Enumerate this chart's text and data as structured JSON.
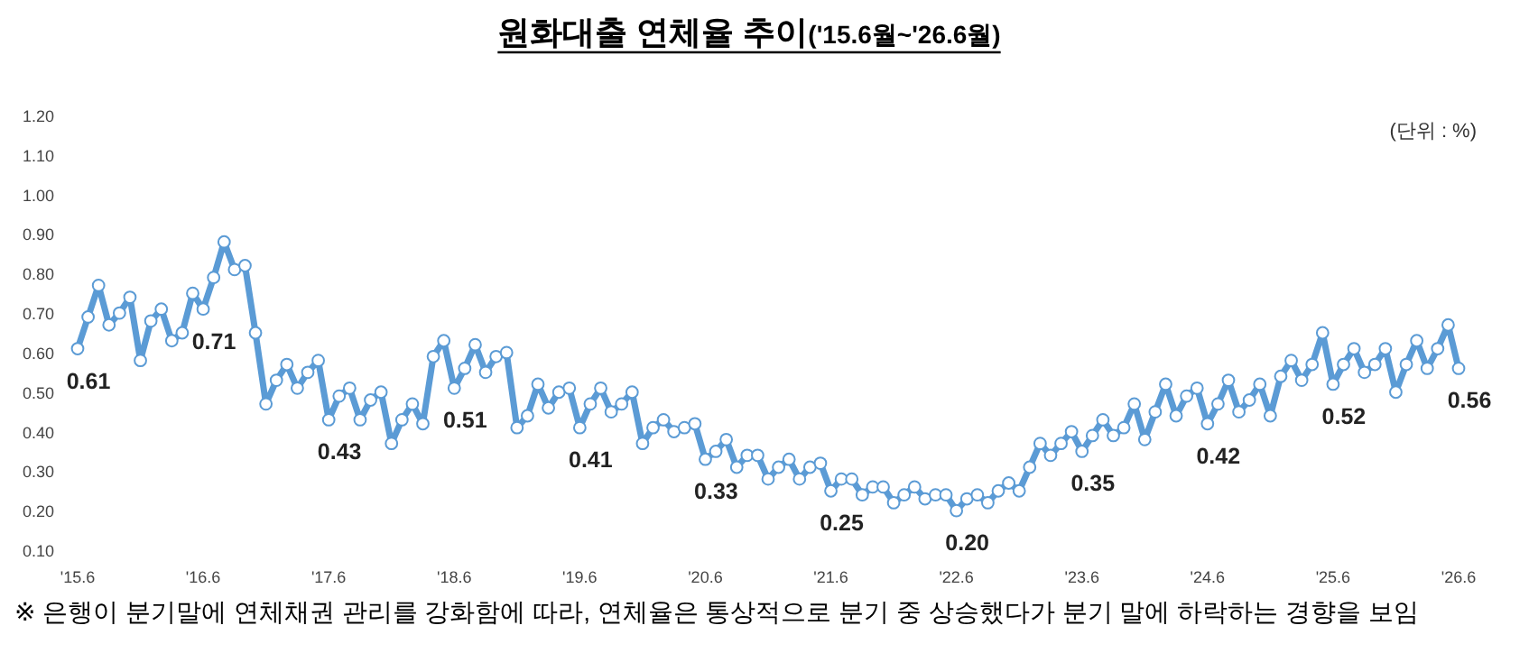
{
  "chart_data": {
    "type": "line",
    "title": "원화대출 연체율 추이",
    "subtitle": "('15.6월~'26.6월)",
    "annotations": [
      "(단위 : %)",
      "※ 은행이 분기말에 연체채권 관리를 강화함에 따라, 연체율은 통상적으로 분기 중 상승했다가 분기 말에 하락하는 경향을 보임"
    ],
    "x": [
      "2015-06",
      "2015-07",
      "2015-08",
      "2015-09",
      "2015-10",
      "2015-11",
      "2015-12",
      "2016-01",
      "2016-02",
      "2016-03",
      "2016-04",
      "2016-05",
      "2016-06",
      "2016-07",
      "2016-08",
      "2016-09",
      "2016-10",
      "2016-11",
      "2016-12",
      "2017-01",
      "2017-02",
      "2017-03",
      "2017-04",
      "2017-05",
      "2017-06",
      "2017-07",
      "2017-08",
      "2017-09",
      "2017-10",
      "2017-11",
      "2017-12",
      "2018-01",
      "2018-02",
      "2018-03",
      "2018-04",
      "2018-05",
      "2018-06",
      "2018-07",
      "2018-08",
      "2018-09",
      "2018-10",
      "2018-11",
      "2018-12",
      "2019-01",
      "2019-02",
      "2019-03",
      "2019-04",
      "2019-05",
      "2019-06",
      "2019-07",
      "2019-08",
      "2019-09",
      "2019-10",
      "2019-11",
      "2019-12",
      "2020-01",
      "2020-02",
      "2020-03",
      "2020-04",
      "2020-05",
      "2020-06",
      "2020-07",
      "2020-08",
      "2020-09",
      "2020-10",
      "2020-11",
      "2020-12",
      "2021-01",
      "2021-02",
      "2021-03",
      "2021-04",
      "2021-05",
      "2021-06",
      "2021-07",
      "2021-08",
      "2021-09",
      "2021-10",
      "2021-11",
      "2021-12",
      "2022-01",
      "2022-02",
      "2022-03",
      "2022-04",
      "2022-05",
      "2022-06",
      "2022-07",
      "2022-08",
      "2022-09",
      "2022-10",
      "2022-11",
      "2022-12",
      "2023-01",
      "2023-02",
      "2023-03",
      "2023-04",
      "2023-05",
      "2023-06",
      "2023-07",
      "2023-08",
      "2023-09",
      "2023-10",
      "2023-11",
      "2023-12",
      "2024-01",
      "2024-02",
      "2024-03",
      "2024-04",
      "2024-05",
      "2024-06",
      "2024-07",
      "2024-08",
      "2024-09",
      "2024-10",
      "2024-11",
      "2024-12",
      "2025-01",
      "2025-02",
      "2025-03",
      "2025-04",
      "2025-05",
      "2025-06",
      "2025-07",
      "2025-08",
      "2025-09",
      "2025-10",
      "2025-11",
      "2025-12",
      "2026-01",
      "2026-02",
      "2026-03",
      "2026-04",
      "2026-05",
      "2026-06"
    ],
    "values": [
      0.61,
      0.69,
      0.77,
      0.67,
      0.7,
      0.74,
      0.58,
      0.68,
      0.71,
      0.63,
      0.65,
      0.75,
      0.71,
      0.79,
      0.88,
      0.81,
      0.82,
      0.65,
      0.47,
      0.53,
      0.57,
      0.51,
      0.55,
      0.58,
      0.43,
      0.49,
      0.51,
      0.43,
      0.48,
      0.5,
      0.37,
      0.43,
      0.47,
      0.42,
      0.59,
      0.63,
      0.51,
      0.56,
      0.62,
      0.55,
      0.59,
      0.6,
      0.41,
      0.44,
      0.52,
      0.46,
      0.5,
      0.51,
      0.41,
      0.47,
      0.51,
      0.45,
      0.47,
      0.5,
      0.37,
      0.41,
      0.43,
      0.4,
      0.41,
      0.42,
      0.33,
      0.35,
      0.38,
      0.31,
      0.34,
      0.34,
      0.28,
      0.31,
      0.33,
      0.28,
      0.31,
      0.32,
      0.25,
      0.28,
      0.28,
      0.24,
      0.26,
      0.26,
      0.22,
      0.24,
      0.26,
      0.23,
      0.24,
      0.24,
      0.2,
      0.23,
      0.24,
      0.22,
      0.25,
      0.27,
      0.25,
      0.31,
      0.37,
      0.34,
      0.37,
      0.4,
      0.35,
      0.39,
      0.43,
      0.39,
      0.41,
      0.47,
      0.38,
      0.45,
      0.52,
      0.44,
      0.49,
      0.51,
      0.42,
      0.47,
      0.53,
      0.45,
      0.48,
      0.52,
      0.44,
      0.54,
      0.58,
      0.53,
      0.57,
      0.65,
      0.52,
      0.57,
      0.61,
      0.55,
      0.57,
      0.61,
      0.5,
      0.57,
      0.63,
      0.56,
      0.61,
      0.67,
      0.56
    ],
    "value_labels": [
      "0.61",
      null,
      null,
      null,
      null,
      null,
      null,
      null,
      null,
      null,
      null,
      null,
      "0.71",
      null,
      null,
      null,
      null,
      null,
      null,
      null,
      null,
      null,
      null,
      null,
      "0.43",
      null,
      null,
      null,
      null,
      null,
      null,
      null,
      null,
      null,
      null,
      null,
      "0.51",
      null,
      null,
      null,
      null,
      null,
      null,
      null,
      null,
      null,
      null,
      null,
      "0.41",
      null,
      null,
      null,
      null,
      null,
      null,
      null,
      null,
      null,
      null,
      null,
      "0.33",
      null,
      null,
      null,
      null,
      null,
      null,
      null,
      null,
      null,
      null,
      null,
      "0.25",
      null,
      null,
      null,
      null,
      null,
      null,
      null,
      null,
      null,
      null,
      null,
      "0.20",
      null,
      null,
      null,
      null,
      null,
      null,
      null,
      null,
      null,
      null,
      null,
      "0.35",
      null,
      null,
      null,
      null,
      null,
      null,
      null,
      null,
      null,
      null,
      null,
      "0.42",
      null,
      null,
      null,
      null,
      null,
      null,
      null,
      null,
      null,
      null,
      null,
      "0.52",
      null,
      null,
      null,
      null,
      null,
      null,
      null,
      null,
      null,
      null,
      null,
      "0.56"
    ],
    "color": "#5b9bd5",
    "marker": "circle",
    "line_style": "solid",
    "grid": false,
    "xlim": [
      "2015-06",
      "2026-06"
    ],
    "xticks": [
      {
        "value": "2015-06",
        "label": "'15.6"
      },
      {
        "value": "2016-06",
        "label": "'16.6"
      },
      {
        "value": "2017-06",
        "label": "'17.6"
      },
      {
        "value": "2018-06",
        "label": "'18.6"
      },
      {
        "value": "2019-06",
        "label": "'19.6"
      },
      {
        "value": "2020-06",
        "label": "'20.6"
      },
      {
        "value": "2021-06",
        "label": "'21.6"
      },
      {
        "value": "2022-06",
        "label": "'22.6"
      },
      {
        "value": "2023-06",
        "label": "'23.6"
      },
      {
        "value": "2024-06",
        "label": "'24.6"
      },
      {
        "value": "2025-06",
        "label": "'25.6"
      },
      {
        "value": "2026-06",
        "label": "'26.6"
      }
    ],
    "ylim": [
      0.1,
      1.2
    ],
    "yticks": [
      {
        "value": 0.1,
        "label": "0.10"
      },
      {
        "value": 0.2,
        "label": "0.20"
      },
      {
        "value": 0.3,
        "label": "0.30"
      },
      {
        "value": 0.4,
        "label": "0.40"
      },
      {
        "value": 0.5,
        "label": "0.50"
      },
      {
        "value": 0.6,
        "label": "0.60"
      },
      {
        "value": 0.7,
        "label": "0.70"
      },
      {
        "value": 0.8,
        "label": "0.80"
      },
      {
        "value": 0.9,
        "label": "0.90"
      },
      {
        "value": 1.0,
        "label": "1.00"
      },
      {
        "value": 1.1,
        "label": "1.10"
      },
      {
        "value": 1.2,
        "label": "1.20"
      }
    ]
  }
}
